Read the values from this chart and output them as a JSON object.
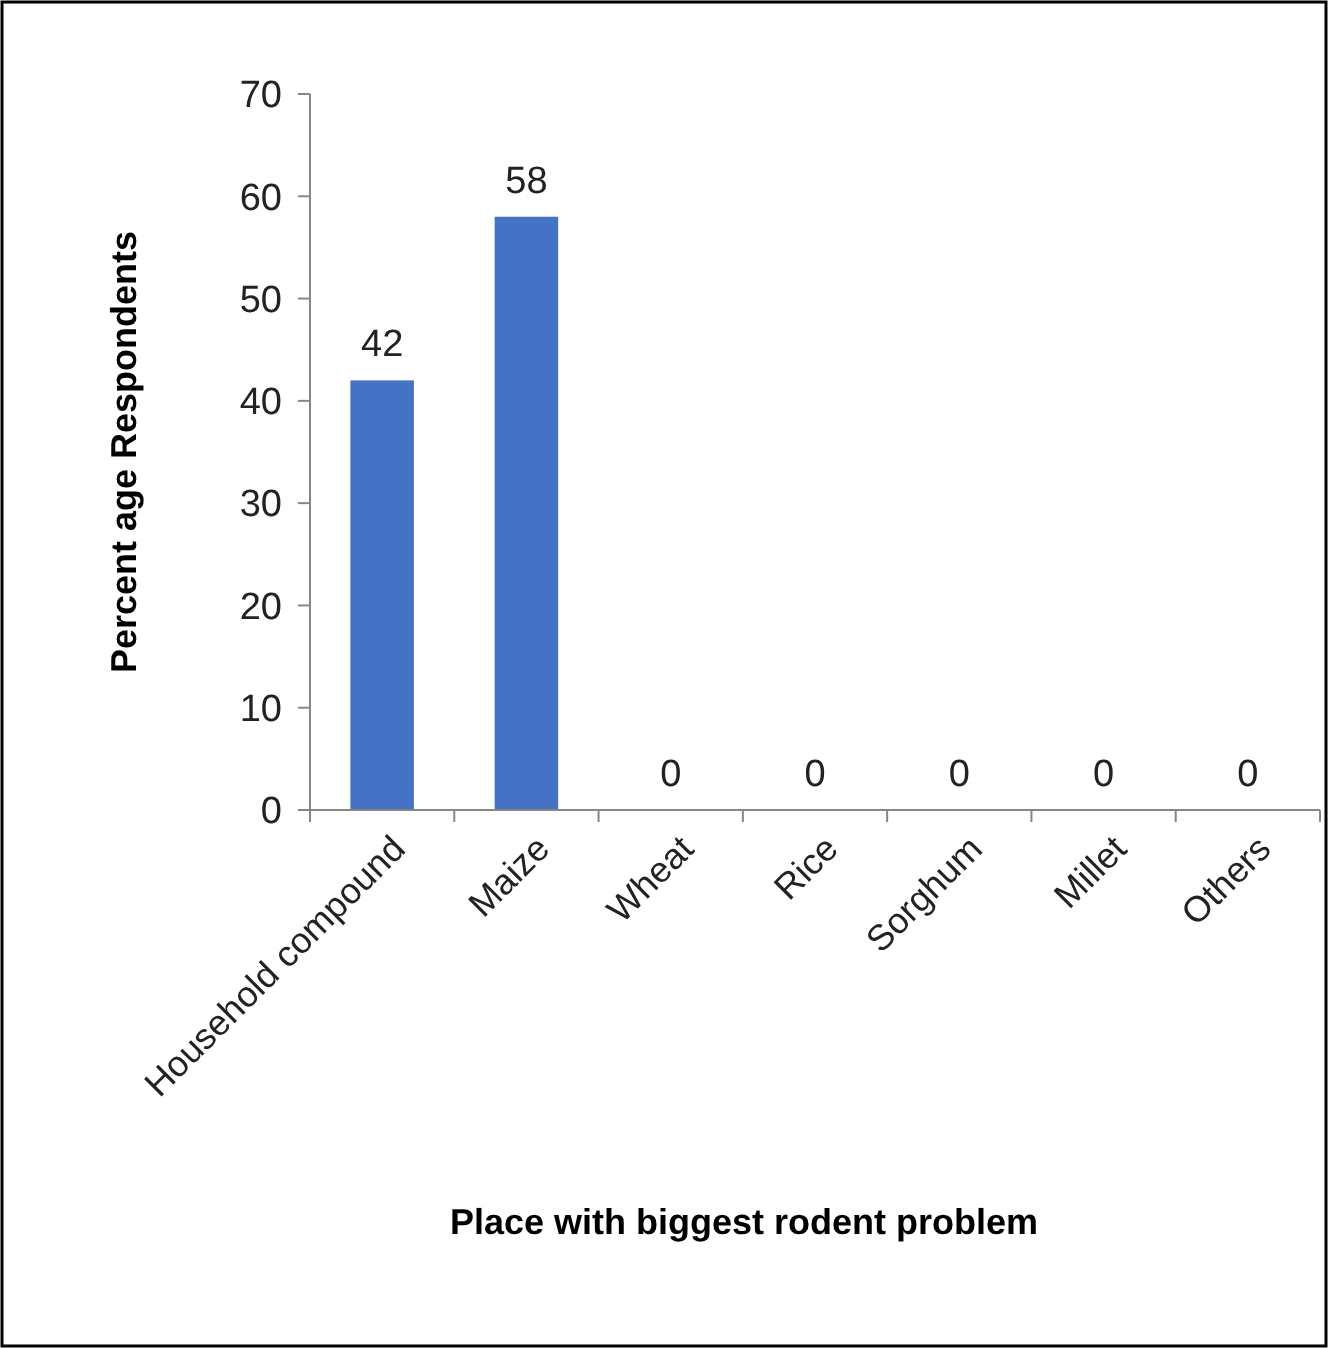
{
  "chart_data": {
    "type": "bar",
    "xlabel": "Place with biggest rodent problem",
    "ylabel": "Percent age Respondents",
    "categories": [
      "Household compound",
      "Maize",
      "Wheat",
      "Rice",
      "Sorghum",
      "Millet",
      "Others"
    ],
    "values": [
      42,
      58,
      0,
      0,
      0,
      0,
      0
    ],
    "color": "#4472c4",
    "ylim": [
      0,
      70
    ],
    "yticks": [
      0,
      10,
      20,
      30,
      40,
      50,
      60,
      70
    ],
    "grid": false,
    "data_labels": true
  }
}
